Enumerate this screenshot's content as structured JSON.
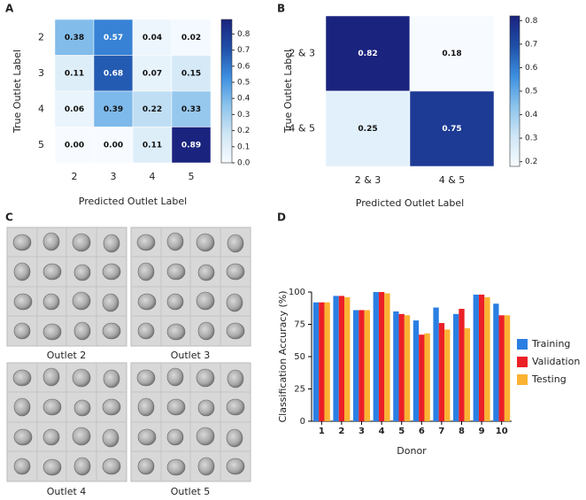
{
  "panel_labels": [
    "A",
    "B",
    "C",
    "D"
  ],
  "image_panel": {
    "labels": [
      "Outlet 2",
      "Outlet 3",
      "Outlet 4",
      "Outlet 5"
    ]
  },
  "chart_data": [
    {
      "type": "heatmap",
      "xlabel": "Predicted Outlet Label",
      "ylabel": "True Outlet Label",
      "categories": [
        "2",
        "3",
        "4",
        "5"
      ],
      "y_categories": [
        "2",
        "3",
        "4",
        "5"
      ],
      "values": [
        [
          0.38,
          0.57,
          0.04,
          0.02
        ],
        [
          0.11,
          0.68,
          0.07,
          0.15
        ],
        [
          0.06,
          0.39,
          0.22,
          0.33
        ],
        [
          0,
          0,
          0.11,
          0.89
        ]
      ],
      "value_labels": [
        [
          "0.38",
          "0.57",
          "0.04",
          "0.02"
        ],
        [
          "0.11",
          "0.68",
          "0.07",
          "0.15"
        ],
        [
          "0.06",
          "0.39",
          "0.22",
          "0.33"
        ],
        [
          "0.00",
          "0.00",
          "0.11",
          "0.89"
        ]
      ],
      "clim": [
        0,
        0.89
      ],
      "cticks": [
        {
          "value": 0,
          "label": "0.0"
        },
        0.1,
        0.2,
        0.3,
        0.4,
        0.5,
        0.6,
        0.7,
        0.8
      ],
      "colormap": [
        "#f7fbff",
        "#cfe6f5",
        "#8cc3ec",
        "#3d8fe0",
        "#1f4fa8",
        "#1a237e"
      ]
    },
    {
      "type": "heatmap",
      "xlabel": "Predicted Outlet Label",
      "ylabel": "True Outlet Label",
      "categories": [
        "2 & 3",
        "4 & 5"
      ],
      "y_categories": [
        "2 & 3",
        "4 & 5"
      ],
      "values": [
        [
          0.82,
          0.18
        ],
        [
          0.25,
          0.75
        ]
      ],
      "clim": [
        0.18,
        0.82
      ],
      "cticks": [
        0.2,
        0.3,
        0.4,
        0.5,
        0.6,
        0.7,
        0.8
      ],
      "colormap": [
        "#f7fbff",
        "#cfe6f5",
        "#8cc3ec",
        "#3d8fe0",
        "#1f4fa8",
        "#1a237e"
      ]
    },
    {
      "type": "bar",
      "xlabel": "Donor",
      "ylabel": "Classification Accuracy (%)",
      "categories": [
        "1",
        "2",
        "3",
        "4",
        "5",
        "6",
        "7",
        "8",
        "9",
        "10"
      ],
      "series": [
        {
          "name": "Training",
          "color": "#2b7fe3",
          "values": [
            92,
            97,
            86,
            100,
            85,
            78,
            88,
            83,
            98,
            91
          ]
        },
        {
          "name": "Validation",
          "color": "#ec2027",
          "values": [
            92,
            97,
            86,
            100,
            83,
            67,
            76,
            87,
            98,
            82
          ]
        },
        {
          "name": "Testing",
          "color": "#fbb233",
          "values": [
            92,
            96,
            86,
            99,
            82,
            68,
            71,
            72,
            96,
            82
          ]
        }
      ],
      "ylim": [
        0,
        100
      ],
      "yticks": [
        0,
        25,
        50,
        75,
        100
      ],
      "grid": false,
      "legend": "right"
    }
  ]
}
